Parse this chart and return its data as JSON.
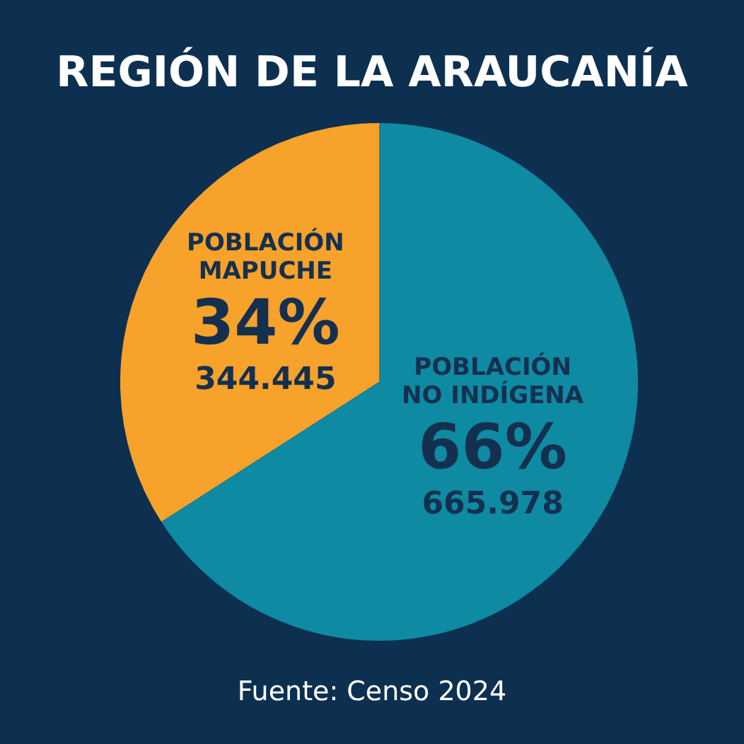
{
  "chart_data": {
    "type": "pie",
    "title": "REGIÓN DE LA ARAUCANÍA",
    "categories": [
      "POBLACIÓN MAPUCHE",
      "POBLACIÓN NO INDÍGENA"
    ],
    "values": [
      344445,
      665978
    ],
    "value_labels": [
      "34%\n344.445",
      "66%\n665.978"
    ],
    "colors": [
      "#f7a22b",
      "#0e8aa3"
    ],
    "annotations": [
      "Fuente: Censo 2024"
    ]
  }
}
